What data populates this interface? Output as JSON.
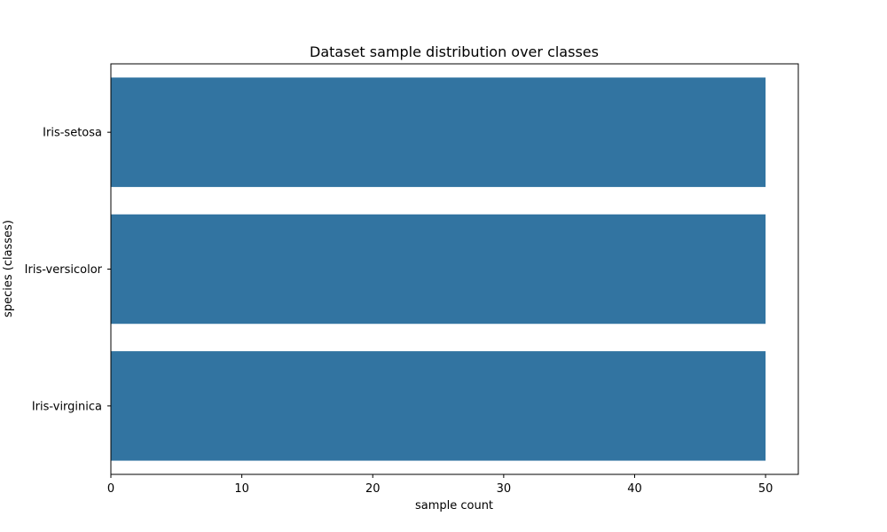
{
  "chart_data": {
    "type": "bar",
    "orientation": "horizontal",
    "title": "Dataset sample distribution over classes",
    "xlabel": "sample count",
    "ylabel": "species (classes)",
    "categories": [
      "Iris-setosa",
      "Iris-versicolor",
      "Iris-virginica"
    ],
    "values": [
      50,
      50,
      50
    ],
    "xlim": [
      0,
      52.5
    ],
    "xticks": [
      0,
      10,
      20,
      30,
      40,
      50
    ],
    "grid": false,
    "bar_color": "#3274a1"
  }
}
